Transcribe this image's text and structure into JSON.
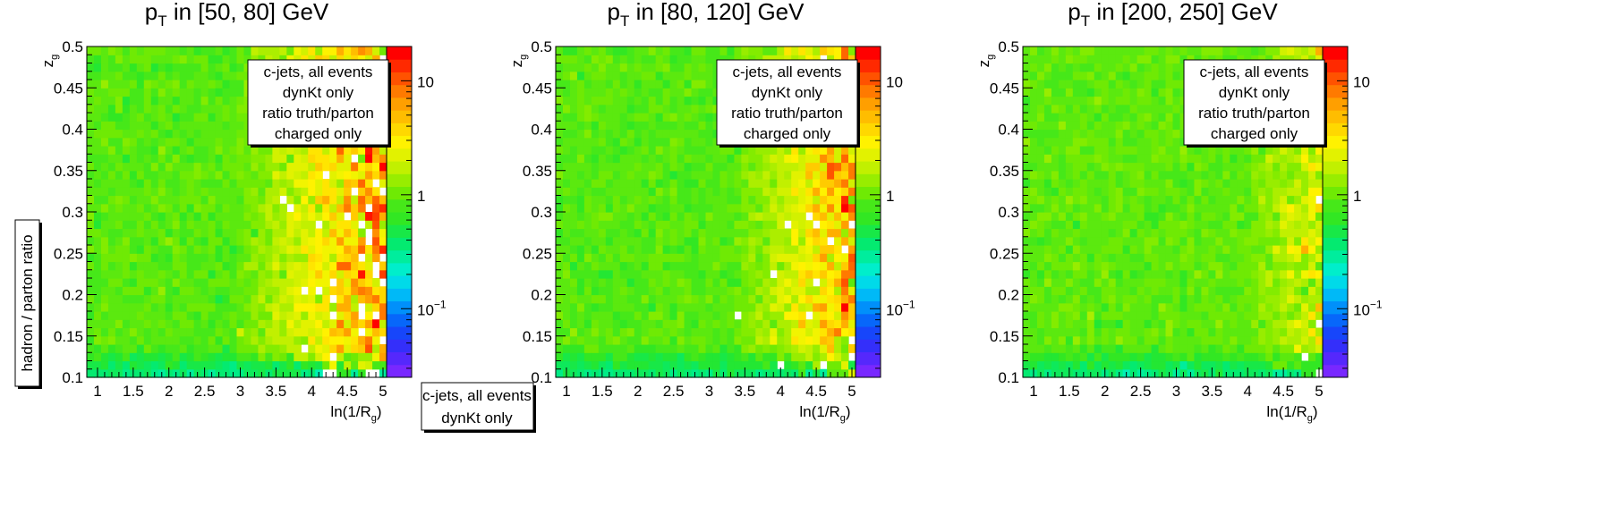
{
  "figure": {
    "y_label": "hadron / parton ratio",
    "legend_box": [
      "c-jets, all events",
      "dynKt only"
    ]
  },
  "chart_data": [
    {
      "type": "heatmap",
      "title_main": "p",
      "title_sub": "T",
      "title_rest": " in [50, 80] GeV",
      "xlabel_main": "ln(1/R",
      "xlabel_sub": "g",
      "xlabel_end": ")",
      "ylabel_main": "z",
      "ylabel_sub": "g",
      "xlim": [
        0.85,
        5.05
      ],
      "ylim": [
        0.1,
        0.5
      ],
      "xticks": [
        "1",
        "1.5",
        "2",
        "2.5",
        "3",
        "3.5",
        "4",
        "4.5",
        "5"
      ],
      "yticks": [
        "0.1",
        "0.15",
        "0.2",
        "0.25",
        "0.3",
        "0.35",
        "0.4",
        "0.45",
        "0.5"
      ],
      "grid": false,
      "z_scale": "log",
      "zlim": [
        0.025,
        20
      ],
      "colorbar_ticks": [
        {
          "value": 0.1,
          "label": "10",
          "sup": "−1"
        },
        {
          "value": 1,
          "label": "1",
          "sup": ""
        },
        {
          "value": 10,
          "label": "10",
          "sup": ""
        }
      ],
      "legend_placement": "top-right",
      "annotation": [
        "c-jets, all events",
        "dynKt only",
        "ratio truth/parton",
        "charged only"
      ],
      "bins": {
        "nx": 42,
        "ny": 40
      },
      "trend": {
        "low_x_value": 0.85,
        "high_x_value": 6.0,
        "onset_x": 2.9,
        "low_y_value": 0.35,
        "noise": 0.9,
        "empty_fraction": 0.15
      }
    },
    {
      "type": "heatmap",
      "title_main": "p",
      "title_sub": "T",
      "title_rest": " in [80, 120] GeV",
      "xlabel_main": "ln(1/R",
      "xlabel_sub": "g",
      "xlabel_end": ")",
      "ylabel_main": "z",
      "ylabel_sub": "g",
      "xlim": [
        0.85,
        5.05
      ],
      "ylim": [
        0.1,
        0.5
      ],
      "xticks": [
        "1",
        "1.5",
        "2",
        "2.5",
        "3",
        "3.5",
        "4",
        "4.5",
        "5"
      ],
      "yticks": [
        "0.1",
        "0.15",
        "0.2",
        "0.25",
        "0.3",
        "0.35",
        "0.4",
        "0.45",
        "0.5"
      ],
      "grid": false,
      "z_scale": "log",
      "zlim": [
        0.025,
        20
      ],
      "colorbar_ticks": [
        {
          "value": 0.1,
          "label": "10",
          "sup": "−1"
        },
        {
          "value": 1,
          "label": "1",
          "sup": ""
        },
        {
          "value": 10,
          "label": "10",
          "sup": ""
        }
      ],
      "legend_placement": "top-right",
      "annotation": [
        "c-jets, all events",
        "dynKt only",
        "ratio truth/parton",
        "charged only"
      ],
      "bins": {
        "nx": 42,
        "ny": 40
      },
      "trend": {
        "low_x_value": 0.85,
        "high_x_value": 4.5,
        "onset_x": 3.3,
        "low_y_value": 0.35,
        "noise": 0.7,
        "empty_fraction": 0.08
      }
    },
    {
      "type": "heatmap",
      "title_main": "p",
      "title_sub": "T",
      "title_rest": " in [200, 250] GeV",
      "xlabel_main": "ln(1/R",
      "xlabel_sub": "g",
      "xlabel_end": ")",
      "ylabel_main": "z",
      "ylabel_sub": "g",
      "xlim": [
        0.85,
        5.05
      ],
      "ylim": [
        0.1,
        0.5
      ],
      "xticks": [
        "1",
        "1.5",
        "2",
        "2.5",
        "3",
        "3.5",
        "4",
        "4.5",
        "5"
      ],
      "yticks": [
        "0.1",
        "0.15",
        "0.2",
        "0.25",
        "0.3",
        "0.35",
        "0.4",
        "0.45",
        "0.5"
      ],
      "grid": false,
      "z_scale": "log",
      "zlim": [
        0.025,
        20
      ],
      "colorbar_ticks": [
        {
          "value": 0.1,
          "label": "10",
          "sup": "−1"
        },
        {
          "value": 1,
          "label": "1",
          "sup": ""
        },
        {
          "value": 10,
          "label": "10",
          "sup": ""
        }
      ],
      "legend_placement": "top-right",
      "annotation": [
        "c-jets, all events",
        "dynKt only",
        "ratio truth/parton",
        "charged only"
      ],
      "bins": {
        "nx": 42,
        "ny": 40
      },
      "trend": {
        "low_x_value": 0.9,
        "high_x_value": 2.2,
        "onset_x": 4.0,
        "low_y_value": 0.35,
        "noise": 0.5,
        "empty_fraction": 0.03
      }
    }
  ]
}
